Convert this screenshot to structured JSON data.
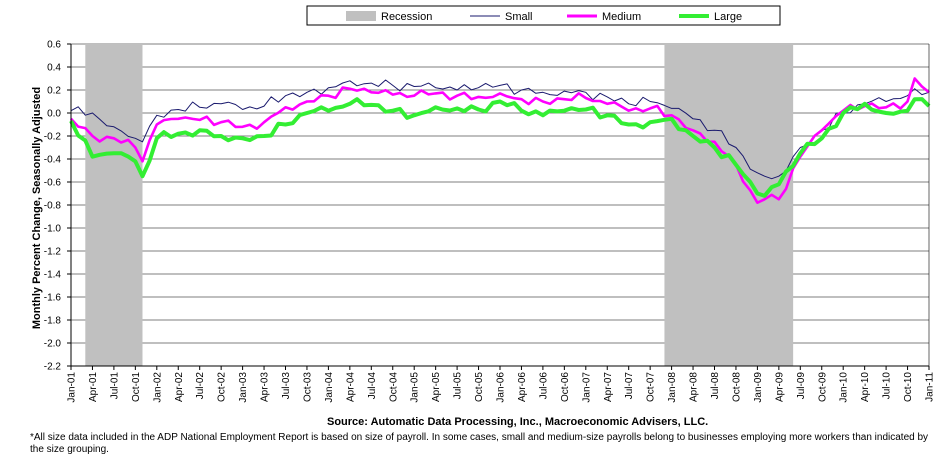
{
  "chart_data": {
    "type": "line",
    "title": "",
    "ylabel": "Monthly Percent Change, Seasonally Adjusted",
    "xlabel": "",
    "ylim": [
      -2.2,
      0.6
    ],
    "yticks": [
      0.6,
      0.4,
      0.2,
      0.0,
      -0.2,
      -0.4,
      -0.6,
      -0.8,
      -1.0,
      -1.2,
      -1.4,
      -1.6,
      -1.8,
      -2.0,
      -2.2
    ],
    "ytick_labels": [
      "0.6",
      "0.4",
      "0.2",
      "0.0",
      "-0.2",
      "-0.4",
      "-0.6",
      "-0.8",
      "-1.0",
      "-1.2",
      "-1.4",
      "-1.6",
      "-1.8",
      "-2.0",
      "-2.2"
    ],
    "x_start": "Jan-01",
    "x_end": "Jan-11",
    "xtick_labels": [
      "Jan-01",
      "Apr-01",
      "Jul-01",
      "Oct-01",
      "Jan-02",
      "Apr-02",
      "Jul-02",
      "Oct-02",
      "Jan-03",
      "Apr-03",
      "Jul-03",
      "Oct-03",
      "Jan-04",
      "Apr-04",
      "Jul-04",
      "Oct-04",
      "Jan-05",
      "Apr-05",
      "Jul-05",
      "Oct-05",
      "Jan-06",
      "Apr-06",
      "Jul-06",
      "Oct-06",
      "Jan-07",
      "Apr-07",
      "Jul-07",
      "Oct-07",
      "Jan-08",
      "Apr-08",
      "Jul-08",
      "Oct-08",
      "Jan-09",
      "Apr-09",
      "Jul-09",
      "Oct-09",
      "Jan-10",
      "Apr-10",
      "Jul-10",
      "Oct-10",
      "Jan-11"
    ],
    "grid": true,
    "legend_position": "top-center",
    "recessions": [
      {
        "start": "Mar-01",
        "end": "Nov-01"
      },
      {
        "start": "Dec-07",
        "end": "Jun-09"
      }
    ],
    "series": [
      {
        "name": "Recession",
        "kind": "shading",
        "color": "#c0c0c0"
      },
      {
        "name": "Small",
        "color": "#1a1a6e",
        "keypoints": [
          [
            "Jan-01",
            0.02
          ],
          [
            "Apr-01",
            0.0
          ],
          [
            "Jul-01",
            -0.12
          ],
          [
            "Oct-01",
            -0.22
          ],
          [
            "Nov-01",
            -0.25
          ],
          [
            "Jan-02",
            -0.02
          ],
          [
            "Apr-02",
            0.03
          ],
          [
            "Jul-02",
            0.05
          ],
          [
            "Oct-02",
            0.08
          ],
          [
            "Jan-03",
            0.03
          ],
          [
            "Apr-03",
            0.06
          ],
          [
            "Jul-03",
            0.15
          ],
          [
            "Oct-03",
            0.18
          ],
          [
            "Jan-04",
            0.22
          ],
          [
            "Apr-04",
            0.28
          ],
          [
            "Jul-04",
            0.26
          ],
          [
            "Oct-04",
            0.24
          ],
          [
            "Jan-05",
            0.23
          ],
          [
            "Apr-05",
            0.22
          ],
          [
            "Jul-05",
            0.2
          ],
          [
            "Oct-05",
            0.22
          ],
          [
            "Jan-06",
            0.24
          ],
          [
            "Apr-06",
            0.2
          ],
          [
            "Jul-06",
            0.18
          ],
          [
            "Oct-06",
            0.19
          ],
          [
            "Jan-07",
            0.18
          ],
          [
            "Apr-07",
            0.14
          ],
          [
            "Jul-07",
            0.08
          ],
          [
            "Oct-07",
            0.1
          ],
          [
            "Jan-08",
            0.04
          ],
          [
            "Apr-08",
            -0.05
          ],
          [
            "Jul-08",
            -0.15
          ],
          [
            "Oct-08",
            -0.3
          ],
          [
            "Jan-09",
            -0.52
          ],
          [
            "Feb-09",
            -0.55
          ],
          [
            "Apr-09",
            -0.55
          ],
          [
            "Jul-09",
            -0.3
          ],
          [
            "Oct-09",
            -0.15
          ],
          [
            "Jan-10",
            0.0
          ],
          [
            "Apr-10",
            0.08
          ],
          [
            "Jul-10",
            0.1
          ],
          [
            "Oct-10",
            0.15
          ],
          [
            "Jan-11",
            0.18
          ]
        ]
      },
      {
        "name": "Medium",
        "color": "#ff00ff",
        "keypoints": [
          [
            "Jan-01",
            -0.05
          ],
          [
            "Apr-01",
            -0.2
          ],
          [
            "Jul-01",
            -0.22
          ],
          [
            "Oct-01",
            -0.3
          ],
          [
            "Nov-01",
            -0.42
          ],
          [
            "Jan-02",
            -0.1
          ],
          [
            "Apr-02",
            -0.05
          ],
          [
            "Jul-02",
            -0.06
          ],
          [
            "Oct-02",
            -0.08
          ],
          [
            "Jan-03",
            -0.12
          ],
          [
            "Apr-03",
            -0.08
          ],
          [
            "Jul-03",
            0.05
          ],
          [
            "Oct-03",
            0.1
          ],
          [
            "Jan-04",
            0.15
          ],
          [
            "Apr-04",
            0.21
          ],
          [
            "Jul-04",
            0.18
          ],
          [
            "Oct-04",
            0.16
          ],
          [
            "Jan-05",
            0.15
          ],
          [
            "Apr-05",
            0.17
          ],
          [
            "Jul-05",
            0.15
          ],
          [
            "Oct-05",
            0.14
          ],
          [
            "Jan-06",
            0.17
          ],
          [
            "Apr-06",
            0.12
          ],
          [
            "Jul-06",
            0.1
          ],
          [
            "Oct-06",
            0.12
          ],
          [
            "Jan-07",
            0.13
          ],
          [
            "Apr-07",
            0.08
          ],
          [
            "Jul-07",
            0.02
          ],
          [
            "Oct-07",
            0.04
          ],
          [
            "Jan-08",
            -0.02
          ],
          [
            "Apr-08",
            -0.15
          ],
          [
            "Jul-08",
            -0.25
          ],
          [
            "Oct-08",
            -0.45
          ],
          [
            "Jan-09",
            -0.78
          ],
          [
            "Feb-09",
            -0.75
          ],
          [
            "Apr-09",
            -0.75
          ],
          [
            "Jul-09",
            -0.38
          ],
          [
            "Oct-09",
            -0.15
          ],
          [
            "Jan-10",
            0.02
          ],
          [
            "Apr-10",
            0.06
          ],
          [
            "Jul-10",
            0.05
          ],
          [
            "Oct-10",
            0.1
          ],
          [
            "Nov-10",
            0.3
          ],
          [
            "Jan-11",
            0.18
          ]
        ]
      },
      {
        "name": "Large",
        "color": "#33ee33",
        "keypoints": [
          [
            "Jan-01",
            -0.07
          ],
          [
            "Apr-01",
            -0.38
          ],
          [
            "Jul-01",
            -0.35
          ],
          [
            "Oct-01",
            -0.42
          ],
          [
            "Nov-01",
            -0.55
          ],
          [
            "Jan-02",
            -0.22
          ],
          [
            "Apr-02",
            -0.18
          ],
          [
            "Jul-02",
            -0.15
          ],
          [
            "Oct-02",
            -0.2
          ],
          [
            "Jan-03",
            -0.22
          ],
          [
            "Apr-03",
            -0.2
          ],
          [
            "Jul-03",
            -0.1
          ],
          [
            "Oct-03",
            0.0
          ],
          [
            "Jan-04",
            0.02
          ],
          [
            "Apr-04",
            0.08
          ],
          [
            "Jul-04",
            0.07
          ],
          [
            "Oct-04",
            0.02
          ],
          [
            "Jan-05",
            -0.02
          ],
          [
            "Apr-05",
            0.05
          ],
          [
            "Jul-05",
            0.04
          ],
          [
            "Oct-05",
            0.03
          ],
          [
            "Jan-06",
            0.1
          ],
          [
            "Apr-06",
            0.02
          ],
          [
            "Jul-06",
            -0.02
          ],
          [
            "Oct-06",
            0.02
          ],
          [
            "Jan-07",
            0.03
          ],
          [
            "Apr-07",
            -0.02
          ],
          [
            "Jul-07",
            -0.1
          ],
          [
            "Oct-07",
            -0.08
          ],
          [
            "Jan-08",
            -0.05
          ],
          [
            "Apr-08",
            -0.2
          ],
          [
            "Jul-08",
            -0.3
          ],
          [
            "Oct-08",
            -0.45
          ],
          [
            "Jan-09",
            -0.7
          ],
          [
            "Feb-09",
            -0.72
          ],
          [
            "Apr-09",
            -0.62
          ],
          [
            "Jul-09",
            -0.35
          ],
          [
            "Oct-09",
            -0.22
          ],
          [
            "Jan-10",
            0.0
          ],
          [
            "Apr-10",
            0.08
          ],
          [
            "Jul-10",
            0.0
          ],
          [
            "Oct-10",
            0.02
          ],
          [
            "Nov-10",
            0.12
          ],
          [
            "Jan-11",
            0.06
          ]
        ]
      }
    ]
  },
  "source_text": "Source: Automatic Data Processing, Inc., Macroeconomic Advisers, LLC.",
  "footnote": "*All size data included in the ADP National Employment Report is based on size of payroll.  In some cases, small and medium-size payrolls belong to businesses employing more workers than indicated by the size grouping."
}
